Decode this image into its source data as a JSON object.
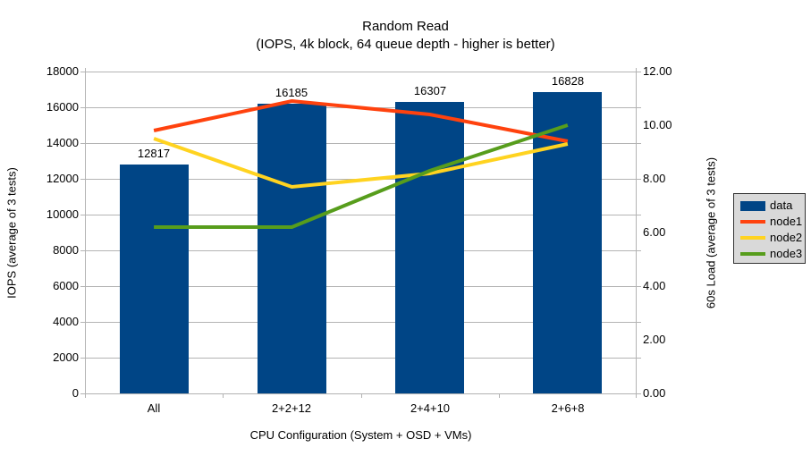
{
  "title": "Random Read",
  "subtitle": "(IOPS, 4k block, 64 queue depth - higher is better)",
  "chart_data": {
    "type": "bar",
    "subtype": "bar-and-line combo, dual axis",
    "categories": [
      "All",
      "2+2+12",
      "2+4+10",
      "2+6+8"
    ],
    "bar_series": {
      "name": "data",
      "axis": "left",
      "values": [
        12817,
        16185,
        16307,
        16828
      ],
      "labels": [
        "12817",
        "16185",
        "16307",
        "16828"
      ],
      "color": "#004586"
    },
    "line_series": [
      {
        "name": "node1",
        "axis": "right",
        "values": [
          9.8,
          10.9,
          10.4,
          9.4
        ],
        "color": "#ff420e"
      },
      {
        "name": "node2",
        "axis": "right",
        "values": [
          9.5,
          7.7,
          8.2,
          9.3
        ],
        "color": "#ffd320"
      },
      {
        "name": "node3",
        "axis": "right",
        "values": [
          6.2,
          6.2,
          8.3,
          10.0
        ],
        "color": "#579d1c"
      }
    ],
    "left_axis": {
      "label": "IOPS (average of 3 tests)",
      "min": 0,
      "max": 18000,
      "step": 2000,
      "tick_labels": [
        "0",
        "2000",
        "4000",
        "6000",
        "8000",
        "10000",
        "12000",
        "14000",
        "16000",
        "18000"
      ]
    },
    "right_axis": {
      "label": "60s Load (average of 3 tests)",
      "min": 0,
      "max": 12,
      "step": 2,
      "tick_labels": [
        "0.00",
        "2.00",
        "4.00",
        "6.00",
        "8.00",
        "10.00",
        "12.00"
      ]
    },
    "x_axis": {
      "label": "CPU Configuration (System + OSD + VMs)"
    },
    "legend": {
      "position": "right",
      "entries": [
        "data",
        "node1",
        "node2",
        "node3"
      ]
    },
    "grid": true,
    "colors": {
      "gridline": "#b3b3b3",
      "background": "#ffffff",
      "text": "#000000",
      "legend_fill": "#d9d9d9",
      "legend_border": "#333333"
    }
  }
}
